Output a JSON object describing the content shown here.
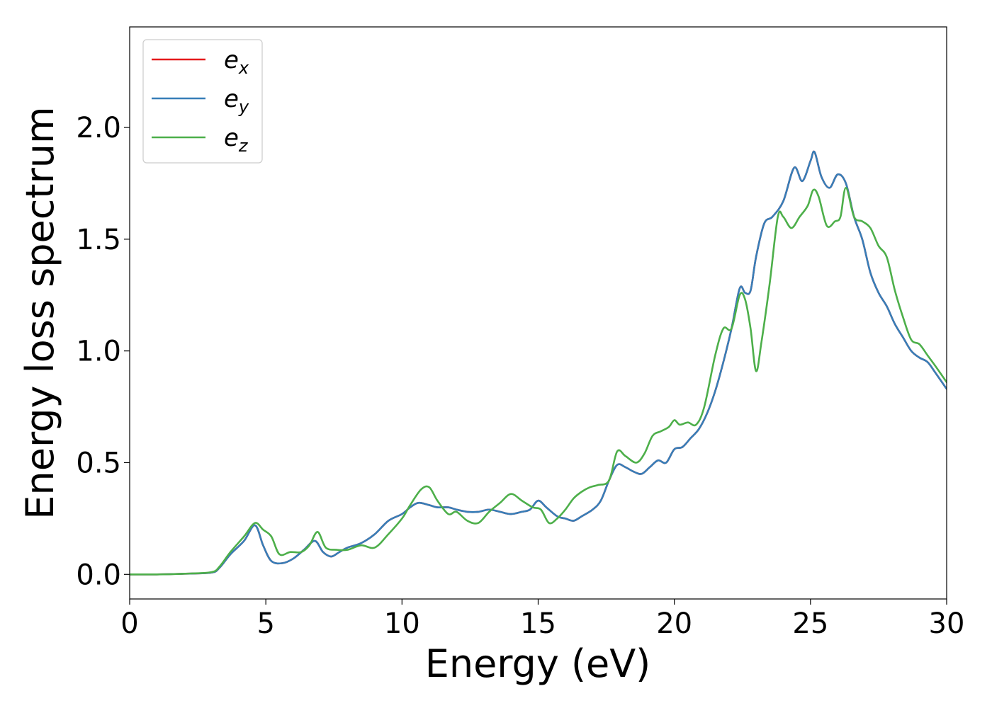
{
  "chart_data": {
    "type": "line",
    "xlabel": "Energy (eV)",
    "ylabel": "Energy loss spectrum",
    "xlim": [
      0,
      30
    ],
    "ylim": [
      -0.11,
      2.45
    ],
    "xticks": [
      0,
      5,
      10,
      15,
      20,
      25,
      30
    ],
    "xtick_labels": [
      "0",
      "5",
      "10",
      "15",
      "20",
      "25",
      "30"
    ],
    "yticks": [
      0.0,
      0.5,
      1.0,
      1.5,
      2.0
    ],
    "ytick_labels": [
      "0.0",
      "0.5",
      "1.0",
      "1.5",
      "2.0"
    ],
    "grid": false,
    "legend_position": "top-left",
    "series": [
      {
        "name": "e_x",
        "label_base": "e",
        "label_sub": "x",
        "color": "#e41a1c",
        "x": [
          0,
          1,
          2,
          3,
          3.3,
          3.7,
          4.2,
          4.6,
          4.9,
          5.2,
          5.6,
          6.0,
          6.4,
          6.8,
          7.1,
          7.4,
          7.7,
          8.0,
          8.5,
          9.0,
          9.5,
          10.0,
          10.3,
          10.6,
          11.0,
          11.3,
          11.7,
          12.0,
          12.4,
          12.8,
          13.2,
          13.6,
          14.0,
          14.4,
          14.7,
          15.0,
          15.3,
          15.7,
          16.0,
          16.3,
          16.6,
          17.0,
          17.3,
          17.6,
          17.9,
          18.2,
          18.5,
          18.8,
          19.1,
          19.4,
          19.7,
          20.0,
          20.3,
          20.6,
          20.9,
          21.2,
          21.5,
          21.8,
          22.1,
          22.4,
          22.6,
          22.8,
          23.0,
          23.3,
          23.6,
          24.0,
          24.4,
          24.7,
          25.0,
          25.15,
          25.4,
          25.7,
          26.0,
          26.3,
          26.6,
          26.9,
          27.2,
          27.5,
          27.8,
          28.1,
          28.4,
          28.7,
          29.0,
          29.3,
          29.6,
          30.0
        ],
        "y": [
          0,
          0,
          0.003,
          0.008,
          0.03,
          0.09,
          0.15,
          0.22,
          0.13,
          0.06,
          0.05,
          0.07,
          0.11,
          0.15,
          0.1,
          0.08,
          0.1,
          0.12,
          0.14,
          0.18,
          0.24,
          0.27,
          0.3,
          0.32,
          0.31,
          0.3,
          0.3,
          0.29,
          0.28,
          0.28,
          0.29,
          0.28,
          0.27,
          0.28,
          0.29,
          0.33,
          0.3,
          0.26,
          0.25,
          0.24,
          0.26,
          0.29,
          0.33,
          0.42,
          0.49,
          0.48,
          0.46,
          0.45,
          0.48,
          0.51,
          0.5,
          0.56,
          0.57,
          0.61,
          0.65,
          0.72,
          0.82,
          0.95,
          1.1,
          1.28,
          1.26,
          1.27,
          1.42,
          1.57,
          1.6,
          1.67,
          1.82,
          1.76,
          1.85,
          1.89,
          1.78,
          1.73,
          1.79,
          1.75,
          1.6,
          1.5,
          1.35,
          1.26,
          1.2,
          1.12,
          1.06,
          1.0,
          0.97,
          0.95,
          0.9,
          0.83
        ]
      },
      {
        "name": "e_y",
        "label_base": "e",
        "label_sub": "y",
        "color": "#377eb8",
        "x": [
          0,
          1,
          2,
          3,
          3.3,
          3.7,
          4.2,
          4.6,
          4.9,
          5.2,
          5.6,
          6.0,
          6.4,
          6.8,
          7.1,
          7.4,
          7.7,
          8.0,
          8.5,
          9.0,
          9.5,
          10.0,
          10.3,
          10.6,
          11.0,
          11.3,
          11.7,
          12.0,
          12.4,
          12.8,
          13.2,
          13.6,
          14.0,
          14.4,
          14.7,
          15.0,
          15.3,
          15.7,
          16.0,
          16.3,
          16.6,
          17.0,
          17.3,
          17.6,
          17.9,
          18.2,
          18.5,
          18.8,
          19.1,
          19.4,
          19.7,
          20.0,
          20.3,
          20.6,
          20.9,
          21.2,
          21.5,
          21.8,
          22.1,
          22.4,
          22.6,
          22.8,
          23.0,
          23.3,
          23.6,
          24.0,
          24.4,
          24.7,
          25.0,
          25.15,
          25.4,
          25.7,
          26.0,
          26.3,
          26.6,
          26.9,
          27.2,
          27.5,
          27.8,
          28.1,
          28.4,
          28.7,
          29.0,
          29.3,
          29.6,
          30.0
        ],
        "y": [
          0,
          0,
          0.003,
          0.008,
          0.03,
          0.09,
          0.15,
          0.22,
          0.13,
          0.06,
          0.05,
          0.07,
          0.11,
          0.15,
          0.1,
          0.08,
          0.1,
          0.12,
          0.14,
          0.18,
          0.24,
          0.27,
          0.3,
          0.32,
          0.31,
          0.3,
          0.3,
          0.29,
          0.28,
          0.28,
          0.29,
          0.28,
          0.27,
          0.28,
          0.29,
          0.33,
          0.3,
          0.26,
          0.25,
          0.24,
          0.26,
          0.29,
          0.33,
          0.42,
          0.49,
          0.48,
          0.46,
          0.45,
          0.48,
          0.51,
          0.5,
          0.56,
          0.57,
          0.61,
          0.65,
          0.72,
          0.82,
          0.95,
          1.1,
          1.28,
          1.26,
          1.27,
          1.42,
          1.57,
          1.6,
          1.67,
          1.82,
          1.76,
          1.85,
          1.89,
          1.78,
          1.73,
          1.79,
          1.75,
          1.6,
          1.5,
          1.35,
          1.26,
          1.2,
          1.12,
          1.06,
          1.0,
          0.97,
          0.95,
          0.9,
          0.83
        ]
      },
      {
        "name": "e_z",
        "label_base": "e",
        "label_sub": "z",
        "color": "#4daf4a",
        "x": [
          0,
          1,
          2,
          3,
          3.3,
          3.7,
          4.2,
          4.6,
          4.9,
          5.2,
          5.5,
          5.9,
          6.3,
          6.6,
          6.9,
          7.2,
          7.6,
          8.0,
          8.5,
          9.0,
          9.5,
          10.0,
          10.3,
          10.7,
          11.0,
          11.3,
          11.7,
          12.0,
          12.4,
          12.8,
          13.2,
          13.6,
          14.0,
          14.4,
          14.8,
          15.1,
          15.4,
          15.7,
          16.0,
          16.3,
          16.6,
          16.9,
          17.2,
          17.6,
          17.9,
          18.2,
          18.6,
          18.9,
          19.2,
          19.5,
          19.8,
          20.0,
          20.2,
          20.5,
          20.8,
          21.1,
          21.5,
          21.8,
          22.1,
          22.4,
          22.6,
          22.8,
          23.0,
          23.2,
          23.5,
          23.8,
          24.0,
          24.3,
          24.6,
          24.9,
          25.1,
          25.3,
          25.6,
          25.9,
          26.1,
          26.3,
          26.6,
          26.9,
          27.2,
          27.5,
          27.8,
          28.1,
          28.4,
          28.7,
          29.0,
          29.3,
          29.6,
          30.0
        ],
        "y": [
          0,
          0,
          0.003,
          0.01,
          0.035,
          0.1,
          0.17,
          0.23,
          0.2,
          0.17,
          0.09,
          0.1,
          0.1,
          0.13,
          0.19,
          0.12,
          0.11,
          0.11,
          0.13,
          0.12,
          0.18,
          0.25,
          0.31,
          0.38,
          0.39,
          0.33,
          0.27,
          0.28,
          0.24,
          0.23,
          0.28,
          0.32,
          0.36,
          0.33,
          0.3,
          0.29,
          0.23,
          0.25,
          0.29,
          0.34,
          0.37,
          0.39,
          0.4,
          0.42,
          0.55,
          0.53,
          0.5,
          0.54,
          0.62,
          0.64,
          0.66,
          0.69,
          0.67,
          0.68,
          0.67,
          0.75,
          0.98,
          1.1,
          1.1,
          1.25,
          1.23,
          1.1,
          0.91,
          1.04,
          1.3,
          1.6,
          1.6,
          1.55,
          1.6,
          1.65,
          1.72,
          1.69,
          1.56,
          1.58,
          1.6,
          1.73,
          1.6,
          1.58,
          1.55,
          1.47,
          1.42,
          1.27,
          1.15,
          1.05,
          1.03,
          0.98,
          0.93,
          0.86
        ]
      }
    ]
  }
}
